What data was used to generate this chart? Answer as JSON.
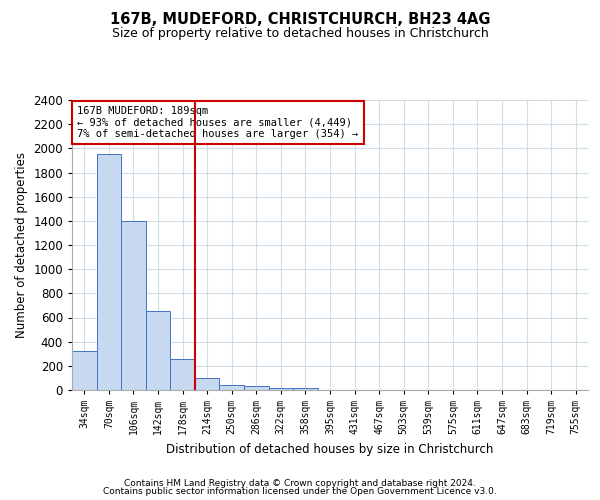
{
  "title": "167B, MUDEFORD, CHRISTCHURCH, BH23 4AG",
  "subtitle": "Size of property relative to detached houses in Christchurch",
  "xlabel": "Distribution of detached houses by size in Christchurch",
  "ylabel": "Number of detached properties",
  "bins": [
    "34sqm",
    "70sqm",
    "106sqm",
    "142sqm",
    "178sqm",
    "214sqm",
    "250sqm",
    "286sqm",
    "322sqm",
    "358sqm",
    "395sqm",
    "431sqm",
    "467sqm",
    "503sqm",
    "539sqm",
    "575sqm",
    "611sqm",
    "647sqm",
    "683sqm",
    "719sqm",
    "755sqm"
  ],
  "values": [
    320,
    1950,
    1400,
    650,
    260,
    100,
    40,
    30,
    20,
    15,
    0,
    0,
    0,
    0,
    0,
    0,
    0,
    0,
    0,
    0,
    0
  ],
  "bar_color": "#c6d9f0",
  "bar_edge_color": "#4472c4",
  "marker_line_color": "#cc0000",
  "annotation_line1": "167B MUDEFORD: 189sqm",
  "annotation_line2": "← 93% of detached houses are smaller (4,449)",
  "annotation_line3": "7% of semi-detached houses are larger (354) →",
  "annotation_box_color": "#cc0000",
  "ylim": [
    0,
    2400
  ],
  "yticks": [
    0,
    200,
    400,
    600,
    800,
    1000,
    1200,
    1400,
    1600,
    1800,
    2000,
    2200,
    2400
  ],
  "footer1": "Contains HM Land Registry data © Crown copyright and database right 2024.",
  "footer2": "Contains public sector information licensed under the Open Government Licence v3.0.",
  "bg_color": "#ffffff",
  "grid_color": "#d0dce8"
}
